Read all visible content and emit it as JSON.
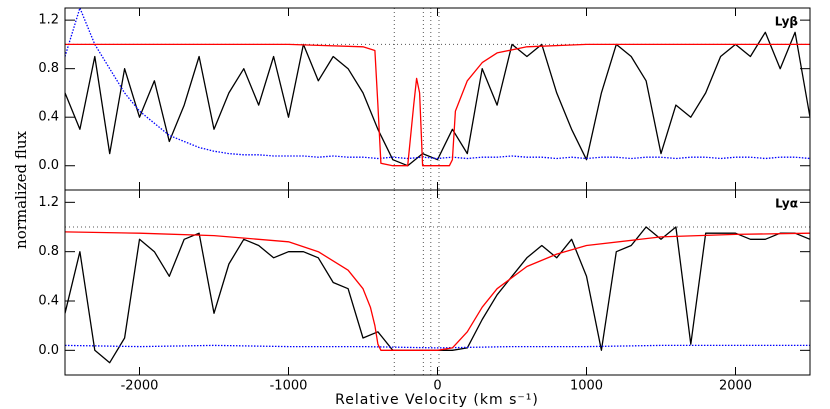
{
  "chart_data": [
    {
      "type": "line",
      "ylabel": "normalized flux",
      "annotation": "Lyβ",
      "xlim": [
        -2500,
        2500
      ],
      "ylim": [
        -0.2,
        1.3
      ],
      "xticks": [
        -2000,
        -1000,
        0,
        1000,
        2000
      ],
      "yticks": [
        {
          "value": 0,
          "label": "0.0"
        },
        {
          "value": 0.4,
          "label": "0.4"
        },
        {
          "value": 0.8,
          "label": "0.8"
        },
        {
          "value": 1.2,
          "label": "1.2"
        }
      ],
      "vlines": [
        -290,
        -95,
        -45,
        10
      ],
      "hlines": [
        1.0
      ],
      "series": [
        {
          "color": "#000000",
          "style": "solid",
          "x": [
            -2500,
            -2400,
            -2300,
            -2200,
            -2100,
            -2000,
            -1900,
            -1800,
            -1700,
            -1600,
            -1500,
            -1400,
            -1300,
            -1200,
            -1100,
            -1000,
            -900,
            -800,
            -700,
            -600,
            -500,
            -400,
            -300,
            -200,
            -100,
            0,
            100,
            200,
            300,
            400,
            500,
            600,
            700,
            800,
            900,
            1000,
            1100,
            1200,
            1300,
            1400,
            1500,
            1600,
            1700,
            1800,
            1900,
            2000,
            2100,
            2200,
            2300,
            2400,
            2500
          ],
          "values": [
            0.6,
            0.3,
            0.9,
            0.1,
            0.8,
            0.4,
            0.7,
            0.2,
            0.5,
            0.9,
            0.3,
            0.6,
            0.8,
            0.5,
            0.9,
            0.4,
            1.0,
            0.7,
            0.9,
            0.8,
            0.6,
            0.3,
            0.05,
            0.0,
            0.1,
            0.05,
            0.3,
            0.1,
            0.8,
            0.5,
            1.0,
            0.9,
            1.0,
            0.6,
            0.3,
            0.05,
            0.6,
            1.0,
            0.9,
            0.7,
            0.1,
            0.5,
            0.4,
            0.6,
            0.9,
            1.0,
            0.9,
            1.1,
            0.8,
            1.1,
            0.4
          ]
        },
        {
          "color": "#0000ff",
          "style": "dotted",
          "x": [
            -2500,
            -2400,
            -2300,
            -2200,
            -2100,
            -2000,
            -1900,
            -1800,
            -1700,
            -1600,
            -1500,
            -1400,
            -1300,
            -1200,
            -1100,
            -1000,
            -900,
            -800,
            -700,
            -600,
            -500,
            -400,
            -300,
            -200,
            -100,
            0,
            100,
            200,
            300,
            400,
            500,
            600,
            700,
            800,
            900,
            1000,
            1100,
            1200,
            1300,
            1400,
            1500,
            1600,
            1700,
            1800,
            1900,
            2000,
            2100,
            2200,
            2300,
            2400,
            2500
          ],
          "values": [
            0.9,
            1.3,
            1.0,
            0.8,
            0.6,
            0.45,
            0.35,
            0.25,
            0.2,
            0.15,
            0.12,
            0.1,
            0.09,
            0.09,
            0.08,
            0.08,
            0.08,
            0.07,
            0.08,
            0.07,
            0.07,
            0.06,
            0.07,
            0.06,
            0.07,
            0.06,
            0.07,
            0.06,
            0.07,
            0.07,
            0.08,
            0.07,
            0.07,
            0.06,
            0.07,
            0.06,
            0.07,
            0.07,
            0.06,
            0.07,
            0.07,
            0.06,
            0.07,
            0.07,
            0.06,
            0.07,
            0.07,
            0.06,
            0.07,
            0.07,
            0.06
          ]
        },
        {
          "color": "#ff0000",
          "style": "solid",
          "x": [
            -2500,
            -1000,
            -500,
            -420,
            -400,
            -380,
            -300,
            -200,
            -160,
            -140,
            -120,
            -110,
            -100,
            -80,
            0,
            80,
            100,
            120,
            200,
            300,
            400,
            600,
            1000,
            2500
          ],
          "values": [
            1,
            1,
            0.98,
            0.95,
            0.5,
            0.02,
            0,
            0,
            0.5,
            0.72,
            0.6,
            0.3,
            0,
            0,
            0,
            0,
            0.05,
            0.45,
            0.7,
            0.85,
            0.93,
            0.98,
            1,
            1
          ]
        }
      ]
    },
    {
      "type": "line",
      "xlabel": "Relative Velocity (km s⁻¹)",
      "annotation": "Lyα",
      "xlim": [
        -2500,
        2500
      ],
      "ylim": [
        -0.2,
        1.3
      ],
      "xticks": [
        -2000,
        -1000,
        0,
        1000,
        2000
      ],
      "yticks": [
        {
          "value": 0,
          "label": "0.0"
        },
        {
          "value": 0.4,
          "label": "0.4"
        },
        {
          "value": 0.8,
          "label": "0.8"
        },
        {
          "value": 1.2,
          "label": "1.2"
        }
      ],
      "vlines": [
        -290,
        -95,
        -45,
        10
      ],
      "hlines": [
        1.0
      ],
      "series": [
        {
          "color": "#000000",
          "style": "solid",
          "x": [
            -2500,
            -2400,
            -2300,
            -2200,
            -2100,
            -2000,
            -1900,
            -1800,
            -1700,
            -1600,
            -1500,
            -1400,
            -1300,
            -1200,
            -1100,
            -1000,
            -900,
            -800,
            -700,
            -600,
            -500,
            -400,
            -300,
            -200,
            -100,
            0,
            100,
            200,
            300,
            400,
            500,
            600,
            700,
            800,
            900,
            1000,
            1100,
            1200,
            1300,
            1400,
            1500,
            1600,
            1700,
            1800,
            1900,
            2000,
            2100,
            2200,
            2300,
            2400,
            2500
          ],
          "values": [
            0.3,
            0.8,
            0.0,
            -0.1,
            0.1,
            0.9,
            0.8,
            0.6,
            0.9,
            0.95,
            0.3,
            0.7,
            0.9,
            0.85,
            0.75,
            0.8,
            0.8,
            0.75,
            0.55,
            0.5,
            0.1,
            0.15,
            0.0,
            0.0,
            0.0,
            0.0,
            0.0,
            0.02,
            0.25,
            0.45,
            0.6,
            0.75,
            0.85,
            0.75,
            0.9,
            0.6,
            0.0,
            0.8,
            0.85,
            1.0,
            0.9,
            1.0,
            0.05,
            0.95,
            0.95,
            0.95,
            0.9,
            0.9,
            0.95,
            0.95,
            0.9
          ]
        },
        {
          "color": "#0000ff",
          "style": "dotted",
          "x": [
            -2500,
            -2000,
            -1500,
            -1000,
            -500,
            0,
            500,
            1000,
            1500,
            2000,
            2500
          ],
          "values": [
            0.04,
            0.03,
            0.04,
            0.03,
            0.03,
            0.02,
            0.03,
            0.03,
            0.04,
            0.04,
            0.04
          ]
        },
        {
          "color": "#ff0000",
          "style": "solid",
          "x": [
            -2500,
            -2000,
            -1500,
            -1000,
            -800,
            -600,
            -500,
            -450,
            -420,
            -400,
            -380,
            -300,
            0,
            100,
            200,
            300,
            400,
            600,
            800,
            1000,
            1500,
            2000,
            2500
          ],
          "values": [
            0.96,
            0.95,
            0.93,
            0.88,
            0.8,
            0.65,
            0.5,
            0.35,
            0.2,
            0.05,
            0,
            0,
            0,
            0.02,
            0.15,
            0.35,
            0.5,
            0.68,
            0.78,
            0.85,
            0.92,
            0.94,
            0.95
          ]
        }
      ]
    }
  ]
}
